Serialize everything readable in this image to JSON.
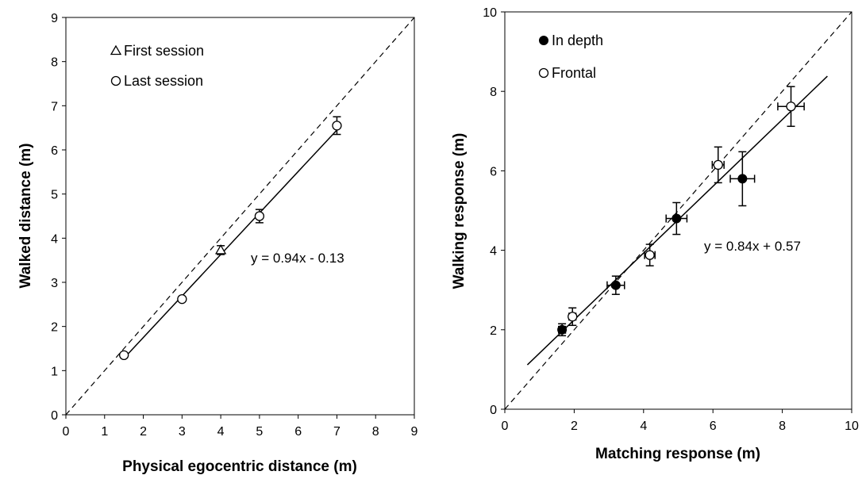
{
  "chart_data": [
    {
      "type": "scatter",
      "xlabel": "Physical egocentric distance (m)",
      "ylabel": "Walked distance (m)",
      "xlim": [
        0,
        9
      ],
      "ylim": [
        0,
        9
      ],
      "xticks": [
        "0",
        "1",
        "2",
        "3",
        "4",
        "5",
        "6",
        "7",
        "8",
        "9"
      ],
      "yticks": [
        "0",
        "1",
        "2",
        "3",
        "4",
        "5",
        "6",
        "7",
        "8",
        "9"
      ],
      "legend_placement": "top-left",
      "grid": false,
      "series": [
        {
          "name": "First session",
          "marker": "triangle-open",
          "points": [
            {
              "x": 4,
              "y": 3.73,
              "yerr": 0.1
            }
          ]
        },
        {
          "name": "Last session",
          "marker": "circle-open",
          "points": [
            {
              "x": 1.5,
              "y": 1.35,
              "yerr": 0.05
            },
            {
              "x": 3,
              "y": 2.62,
              "yerr": 0.05
            },
            {
              "x": 5,
              "y": 4.5,
              "yerr": 0.15
            },
            {
              "x": 7,
              "y": 6.55,
              "yerr": 0.2
            }
          ]
        }
      ],
      "fit": {
        "slope": 0.94,
        "intercept": -0.13,
        "x_range": [
          1.5,
          7
        ],
        "style": "solid"
      },
      "identity": {
        "style": "dashed"
      },
      "equation": "y = 0.94x - 0.13"
    },
    {
      "type": "scatter",
      "xlabel": "Matching response (m)",
      "ylabel": "Walking response (m)",
      "xlim": [
        0,
        10
      ],
      "ylim": [
        0,
        10
      ],
      "xticks": [
        "0",
        "2",
        "4",
        "6",
        "8",
        "10"
      ],
      "yticks": [
        "0",
        "2",
        "4",
        "6",
        "8",
        "10"
      ],
      "legend_placement": "top-left",
      "grid": false,
      "series": [
        {
          "name": "In depth",
          "marker": "circle-filled",
          "points": [
            {
              "x": 1.65,
              "y": 2.0,
              "xerr": 0.1,
              "yerr": 0.15
            },
            {
              "x": 3.2,
              "y": 3.12,
              "xerr": 0.25,
              "yerr": 0.23
            },
            {
              "x": 4.95,
              "y": 4.8,
              "xerr": 0.3,
              "yerr": 0.4
            },
            {
              "x": 6.85,
              "y": 5.8,
              "xerr": 0.35,
              "yerr": 0.68
            }
          ]
        },
        {
          "name": "Frontal",
          "marker": "circle-open",
          "points": [
            {
              "x": 1.95,
              "y": 2.33,
              "xerr": 0.1,
              "yerr": 0.22
            },
            {
              "x": 4.18,
              "y": 3.88,
              "xerr": 0.15,
              "yerr": 0.27
            },
            {
              "x": 6.15,
              "y": 6.15,
              "xerr": 0.17,
              "yerr": 0.45
            },
            {
              "x": 8.25,
              "y": 7.62,
              "xerr": 0.38,
              "yerr": 0.5
            }
          ]
        }
      ],
      "fit": {
        "slope": 0.84,
        "intercept": 0.57,
        "x_range": [
          0.65,
          9.3
        ],
        "style": "solid"
      },
      "identity": {
        "style": "dashed"
      },
      "equation": "y = 0.84x + 0.57"
    }
  ]
}
